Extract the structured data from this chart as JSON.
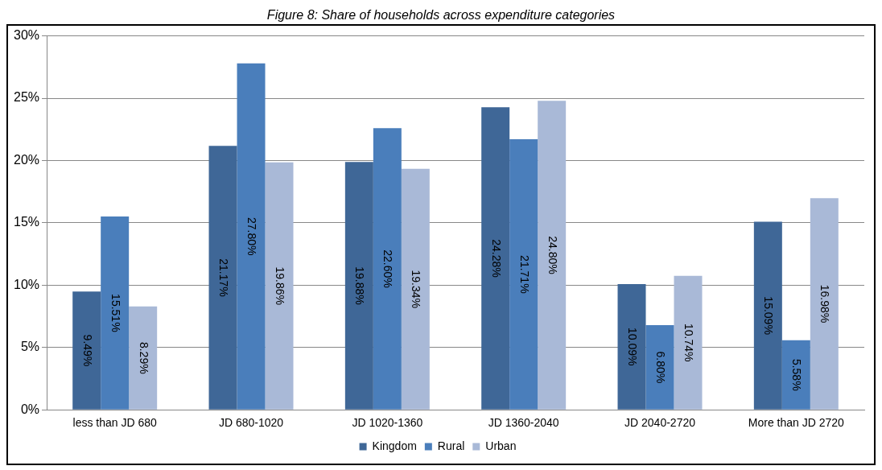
{
  "chart_data": {
    "type": "bar",
    "title": "Figure 8: Share of households across expenditure categories",
    "categories": [
      "less than JD 680",
      "JD 680-1020",
      "JD 1020-1360",
      "JD 1360-2040",
      "JD 2040-2720",
      "More than JD 2720"
    ],
    "series": [
      {
        "name": "Kingdom",
        "color": "#3f6797",
        "values": [
          9.49,
          21.17,
          19.88,
          24.28,
          10.09,
          15.09
        ],
        "value_labels": [
          "9.49%",
          "21.17%",
          "19.88%",
          "24.28%",
          "10.09%",
          "15.09%"
        ]
      },
      {
        "name": "Rural",
        "color": "#4a7ebb",
        "values": [
          15.51,
          27.8,
          22.6,
          21.71,
          6.8,
          5.58
        ],
        "value_labels": [
          "15.51%",
          "27.80%",
          "22.60%",
          "21.71%",
          "6.80%",
          "5.58%"
        ]
      },
      {
        "name": "Urban",
        "color": "#a9b9d7",
        "values": [
          8.29,
          19.86,
          19.34,
          24.8,
          10.74,
          16.98
        ],
        "value_labels": [
          "8.29%",
          "19.86%",
          "19.34%",
          "24.80%",
          "10.74%",
          "16.98%"
        ]
      }
    ],
    "ylim": [
      0,
      30
    ],
    "yticks": [
      {
        "value": 0,
        "label": "0%"
      },
      {
        "value": 5,
        "label": "5%"
      },
      {
        "value": 10,
        "label": "10%"
      },
      {
        "value": 15,
        "label": "15%"
      },
      {
        "value": 20,
        "label": "20%"
      },
      {
        "value": 25,
        "label": "25%"
      },
      {
        "value": 30,
        "label": "30%"
      }
    ],
    "grid": "y",
    "legend": "bottom"
  }
}
